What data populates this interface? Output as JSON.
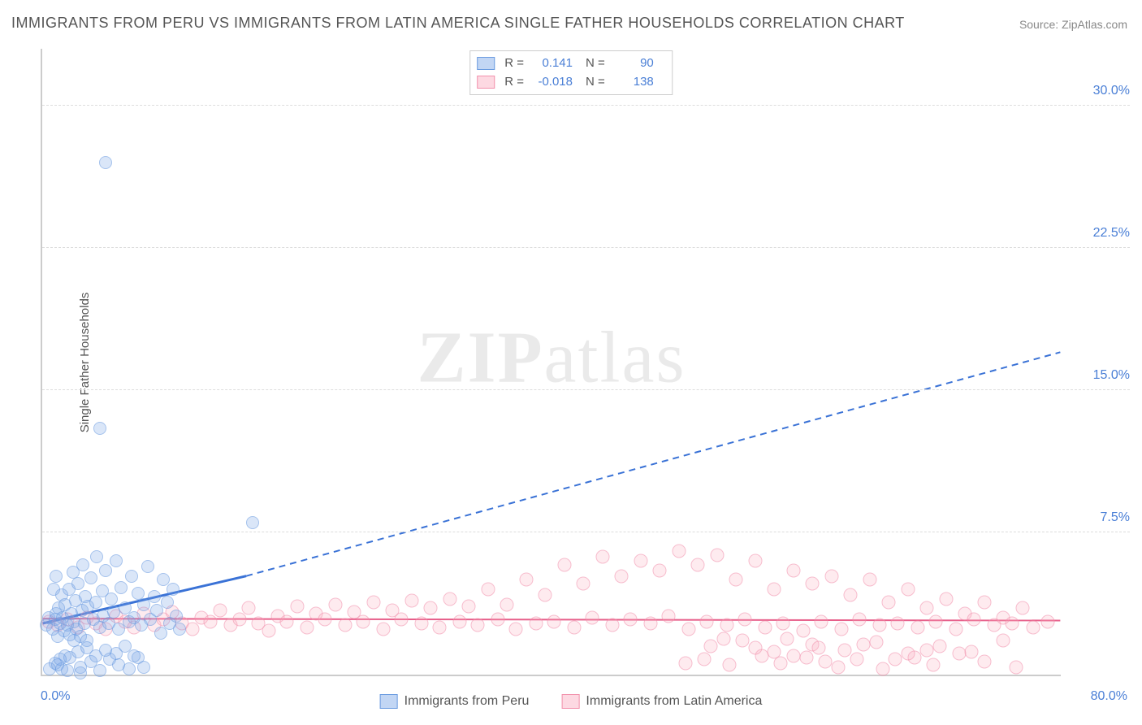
{
  "title": "IMMIGRANTS FROM PERU VS IMMIGRANTS FROM LATIN AMERICA SINGLE FATHER HOUSEHOLDS CORRELATION CHART",
  "source": "Source: ZipAtlas.com",
  "ylabel": "Single Father Households",
  "watermark_a": "ZIP",
  "watermark_b": "atlas",
  "chart": {
    "type": "scatter",
    "xlim": [
      0,
      80
    ],
    "ylim": [
      0,
      33
    ],
    "x_start_label": "0.0%",
    "x_end_label": "80.0%",
    "yticks": [
      7.5,
      15.0,
      22.5,
      30.0
    ],
    "ytick_labels": [
      "7.5%",
      "15.0%",
      "22.5%",
      "30.0%"
    ],
    "grid_color": "#dddddd",
    "axis_color": "#cccccc",
    "background_color": "#ffffff",
    "tick_label_color": "#4a7fd6",
    "title_color": "#555555"
  },
  "series": {
    "blue": {
      "name": "Immigrants from Peru",
      "color_fill": "rgba(120,165,230,0.45)",
      "color_stroke": "#6a9be0",
      "marker_size": 16,
      "R": "0.141",
      "N": "90",
      "trend": {
        "x1": 0,
        "y1": 2.7,
        "x2_solid": 16,
        "y2_solid": 5.2,
        "x2": 80,
        "y2": 17.0,
        "color": "#3a72d6",
        "width": 2
      },
      "points": [
        [
          0.3,
          2.6
        ],
        [
          0.5,
          3.0
        ],
        [
          0.8,
          2.4
        ],
        [
          1.0,
          2.9
        ],
        [
          1.1,
          3.2
        ],
        [
          1.2,
          2.0
        ],
        [
          1.3,
          3.5
        ],
        [
          1.4,
          2.7
        ],
        [
          1.5,
          4.2
        ],
        [
          1.6,
          3.0
        ],
        [
          1.7,
          2.3
        ],
        [
          1.8,
          3.7
        ],
        [
          2.0,
          2.6
        ],
        [
          2.1,
          4.5
        ],
        [
          2.2,
          2.1
        ],
        [
          2.3,
          3.2
        ],
        [
          2.4,
          5.4
        ],
        [
          2.5,
          2.8
        ],
        [
          2.6,
          3.9
        ],
        [
          2.7,
          2.4
        ],
        [
          2.8,
          4.8
        ],
        [
          3.0,
          2.0
        ],
        [
          3.1,
          3.4
        ],
        [
          3.2,
          5.8
        ],
        [
          3.3,
          2.7
        ],
        [
          3.4,
          4.1
        ],
        [
          3.5,
          1.8
        ],
        [
          3.6,
          3.6
        ],
        [
          3.8,
          5.1
        ],
        [
          4.0,
          2.9
        ],
        [
          4.2,
          3.8
        ],
        [
          4.3,
          6.2
        ],
        [
          4.5,
          2.5
        ],
        [
          4.7,
          4.4
        ],
        [
          4.8,
          3.1
        ],
        [
          5.0,
          5.5
        ],
        [
          5.2,
          2.7
        ],
        [
          5.4,
          4.0
        ],
        [
          5.6,
          3.3
        ],
        [
          5.8,
          6.0
        ],
        [
          6.0,
          2.4
        ],
        [
          6.2,
          4.6
        ],
        [
          6.5,
          3.5
        ],
        [
          6.8,
          2.8
        ],
        [
          7.0,
          5.2
        ],
        [
          7.2,
          3.0
        ],
        [
          7.5,
          4.3
        ],
        [
          7.8,
          2.6
        ],
        [
          8.0,
          3.7
        ],
        [
          8.3,
          5.7
        ],
        [
          8.5,
          2.9
        ],
        [
          8.8,
          4.1
        ],
        [
          9.0,
          3.4
        ],
        [
          9.3,
          2.2
        ],
        [
          9.5,
          5.0
        ],
        [
          9.8,
          3.8
        ],
        [
          10.0,
          2.7
        ],
        [
          10.3,
          4.5
        ],
        [
          10.5,
          3.1
        ],
        [
          10.8,
          2.4
        ],
        [
          1.0,
          0.6
        ],
        [
          1.5,
          0.3
        ],
        [
          2.2,
          0.9
        ],
        [
          3.0,
          0.4
        ],
        [
          3.8,
          0.7
        ],
        [
          4.5,
          0.2
        ],
        [
          5.3,
          0.8
        ],
        [
          6.0,
          0.5
        ],
        [
          6.8,
          0.3
        ],
        [
          7.5,
          0.9
        ],
        [
          8.0,
          0.4
        ],
        [
          2.8,
          1.2
        ],
        [
          3.5,
          1.4
        ],
        [
          4.2,
          1.0
        ],
        [
          5.0,
          1.3
        ],
        [
          5.8,
          1.1
        ],
        [
          6.5,
          1.5
        ],
        [
          7.2,
          1.0
        ],
        [
          4.5,
          13.0
        ],
        [
          5.0,
          27.0
        ],
        [
          2.0,
          0.2
        ],
        [
          2.5,
          1.8
        ],
        [
          3.0,
          0.1
        ],
        [
          16.5,
          8.0
        ],
        [
          1.2,
          0.5
        ],
        [
          1.8,
          1.0
        ],
        [
          0.6,
          0.3
        ],
        [
          0.9,
          4.5
        ],
        [
          1.1,
          5.2
        ],
        [
          1.4,
          0.8
        ]
      ]
    },
    "pink": {
      "name": "Immigrants from Latin America",
      "color_fill": "rgba(250,170,190,0.4)",
      "color_stroke": "#f291ac",
      "marker_size": 17,
      "R": "-0.018",
      "N": "138",
      "trend": {
        "x1": 0,
        "y1": 2.95,
        "x2": 80,
        "y2": 2.85,
        "color": "#e75f8a",
        "width": 2
      },
      "points": [
        [
          0.5,
          2.8
        ],
        [
          1.2,
          2.6
        ],
        [
          2.0,
          2.9
        ],
        [
          2.8,
          2.5
        ],
        [
          3.5,
          3.0
        ],
        [
          4.2,
          2.7
        ],
        [
          5.0,
          2.4
        ],
        [
          5.8,
          3.1
        ],
        [
          6.5,
          2.8
        ],
        [
          7.2,
          2.5
        ],
        [
          8.0,
          3.2
        ],
        [
          8.8,
          2.6
        ],
        [
          9.5,
          2.9
        ],
        [
          10.2,
          3.3
        ],
        [
          11.0,
          2.7
        ],
        [
          11.8,
          2.4
        ],
        [
          12.5,
          3.0
        ],
        [
          13.2,
          2.8
        ],
        [
          14.0,
          3.4
        ],
        [
          14.8,
          2.6
        ],
        [
          15.5,
          2.9
        ],
        [
          16.2,
          3.5
        ],
        [
          17.0,
          2.7
        ],
        [
          17.8,
          2.3
        ],
        [
          18.5,
          3.1
        ],
        [
          19.2,
          2.8
        ],
        [
          20.0,
          3.6
        ],
        [
          20.8,
          2.5
        ],
        [
          21.5,
          3.2
        ],
        [
          22.2,
          2.9
        ],
        [
          23.0,
          3.7
        ],
        [
          23.8,
          2.6
        ],
        [
          24.5,
          3.3
        ],
        [
          25.2,
          2.8
        ],
        [
          26.0,
          3.8
        ],
        [
          26.8,
          2.4
        ],
        [
          27.5,
          3.4
        ],
        [
          28.2,
          2.9
        ],
        [
          29.0,
          3.9
        ],
        [
          29.8,
          2.7
        ],
        [
          30.5,
          3.5
        ],
        [
          31.2,
          2.5
        ],
        [
          32.0,
          4.0
        ],
        [
          32.8,
          2.8
        ],
        [
          33.5,
          3.6
        ],
        [
          34.2,
          2.6
        ],
        [
          35.0,
          4.5
        ],
        [
          35.8,
          2.9
        ],
        [
          36.5,
          3.7
        ],
        [
          37.2,
          2.4
        ],
        [
          38.0,
          5.0
        ],
        [
          38.8,
          2.7
        ],
        [
          39.5,
          4.2
        ],
        [
          40.2,
          2.8
        ],
        [
          41.0,
          5.8
        ],
        [
          41.8,
          2.5
        ],
        [
          42.5,
          4.8
        ],
        [
          43.2,
          3.0
        ],
        [
          44.0,
          6.2
        ],
        [
          44.8,
          2.6
        ],
        [
          45.5,
          5.2
        ],
        [
          46.2,
          2.9
        ],
        [
          47.0,
          6.0
        ],
        [
          47.8,
          2.7
        ],
        [
          48.5,
          5.5
        ],
        [
          49.2,
          3.1
        ],
        [
          50.0,
          6.5
        ],
        [
          50.8,
          2.4
        ],
        [
          51.5,
          5.8
        ],
        [
          52.2,
          2.8
        ],
        [
          53.0,
          6.3
        ],
        [
          53.8,
          2.6
        ],
        [
          54.5,
          5.0
        ],
        [
          55.2,
          2.9
        ],
        [
          56.0,
          6.0
        ],
        [
          56.8,
          2.5
        ],
        [
          57.5,
          4.5
        ],
        [
          58.2,
          2.7
        ],
        [
          59.0,
          5.5
        ],
        [
          59.8,
          2.3
        ],
        [
          60.5,
          4.8
        ],
        [
          61.2,
          2.8
        ],
        [
          62.0,
          5.2
        ],
        [
          62.8,
          2.4
        ],
        [
          63.5,
          4.2
        ],
        [
          64.2,
          2.9
        ],
        [
          65.0,
          5.0
        ],
        [
          65.8,
          2.6
        ],
        [
          66.5,
          3.8
        ],
        [
          67.2,
          2.7
        ],
        [
          68.0,
          4.5
        ],
        [
          68.8,
          2.5
        ],
        [
          69.5,
          3.5
        ],
        [
          70.2,
          2.8
        ],
        [
          71.0,
          4.0
        ],
        [
          71.8,
          2.4
        ],
        [
          72.5,
          3.2
        ],
        [
          73.2,
          2.9
        ],
        [
          74.0,
          3.8
        ],
        [
          74.8,
          2.6
        ],
        [
          75.5,
          3.0
        ],
        [
          76.2,
          2.7
        ],
        [
          77.0,
          3.5
        ],
        [
          77.8,
          2.5
        ],
        [
          79.0,
          2.8
        ],
        [
          52.0,
          0.8
        ],
        [
          54.0,
          0.5
        ],
        [
          56.5,
          1.0
        ],
        [
          58.0,
          0.6
        ],
        [
          60.0,
          0.9
        ],
        [
          62.5,
          0.4
        ],
        [
          64.0,
          0.8
        ],
        [
          66.0,
          0.3
        ],
        [
          68.5,
          0.9
        ],
        [
          70.0,
          0.5
        ],
        [
          72.0,
          1.1
        ],
        [
          74.0,
          0.7
        ],
        [
          76.5,
          0.4
        ],
        [
          52.5,
          1.5
        ],
        [
          55.0,
          1.8
        ],
        [
          57.5,
          1.2
        ],
        [
          60.5,
          1.6
        ],
        [
          63.0,
          1.3
        ],
        [
          65.5,
          1.7
        ],
        [
          68.0,
          1.1
        ],
        [
          70.5,
          1.5
        ],
        [
          73.0,
          1.2
        ],
        [
          75.5,
          1.8
        ],
        [
          58.5,
          1.9
        ],
        [
          61.0,
          1.4
        ],
        [
          50.5,
          0.6
        ],
        [
          53.5,
          1.9
        ],
        [
          56.0,
          1.4
        ],
        [
          59.0,
          1.0
        ],
        [
          61.5,
          0.7
        ],
        [
          64.5,
          1.6
        ],
        [
          67.0,
          0.8
        ],
        [
          69.5,
          1.3
        ]
      ]
    }
  },
  "legend_top": {
    "r_label": "R =",
    "n_label": "N ="
  },
  "legend_bottom": {
    "blue": "Immigrants from Peru",
    "pink": "Immigrants from Latin America"
  }
}
